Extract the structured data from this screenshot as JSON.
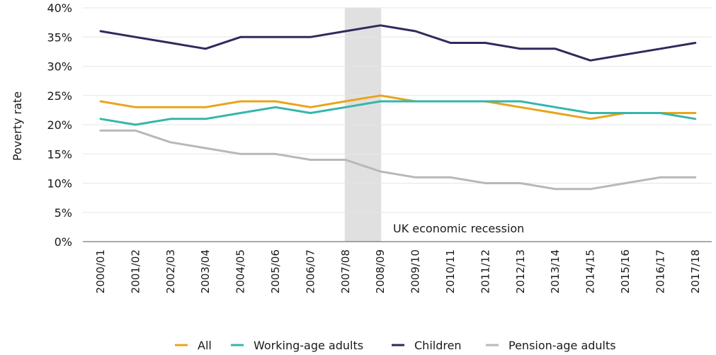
{
  "chart_data": {
    "type": "line",
    "title": "",
    "xlabel": "",
    "ylabel": "Poverty rate",
    "ylim": [
      0,
      40
    ],
    "y_ticks": [
      "0%",
      "5%",
      "10%",
      "15%",
      "20%",
      "25%",
      "30%",
      "35%",
      "40%"
    ],
    "categories": [
      "2000/01",
      "2001/02",
      "2002/03",
      "2003/04",
      "2004/05",
      "2005/06",
      "2006/07",
      "2007/08",
      "2008/09",
      "2009/10",
      "2010/11",
      "2011/12",
      "2012/13",
      "2013/14",
      "2014/15",
      "2015/16",
      "2016/17",
      "2017/18"
    ],
    "grid": true,
    "legend_position": "bottom",
    "annotation": {
      "text": "UK economic recession",
      "from": "2007/08",
      "to": "2008/09",
      "color": "#e0e0e0"
    },
    "series": [
      {
        "name": "All",
        "color": "#e8a51b",
        "values": [
          24,
          23,
          23,
          23,
          24,
          24,
          23,
          24,
          25,
          24,
          24,
          24,
          23,
          22,
          21,
          22,
          22,
          22
        ]
      },
      {
        "name": "Working-age adults",
        "color": "#35b6ab",
        "values": [
          21,
          20,
          21,
          21,
          22,
          23,
          22,
          23,
          24,
          24,
          24,
          24,
          24,
          23,
          22,
          22,
          22,
          21
        ]
      },
      {
        "name": "Children",
        "color": "#2f2a5e",
        "values": [
          36,
          35,
          34,
          33,
          35,
          35,
          35,
          36,
          37,
          36,
          34,
          34,
          33,
          33,
          31,
          32,
          33,
          34
        ]
      },
      {
        "name": "Pension-age adults",
        "color": "#b8b8b8",
        "values": [
          19,
          19,
          17,
          16,
          15,
          15,
          14,
          14,
          12,
          11,
          11,
          10,
          10,
          9,
          9,
          10,
          11,
          11
        ]
      }
    ]
  }
}
